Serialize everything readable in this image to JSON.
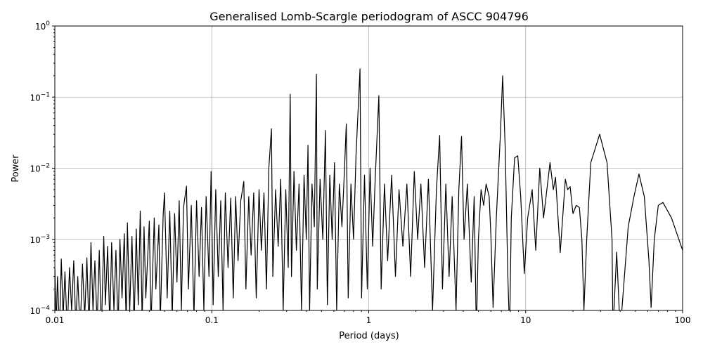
{
  "chart_data": {
    "type": "line",
    "title": "Generalised Lomb-Scargle periodogram of ASCC 904796",
    "xlabel": "Period (days)",
    "ylabel": "Power",
    "xscale": "log",
    "yscale": "log",
    "xlim": [
      0.01,
      100
    ],
    "ylim": [
      0.0001,
      1
    ],
    "grid": true,
    "line_color": "#000000",
    "grid_color": "#b0b0b0",
    "x_ticks": [
      {
        "v": 0.01,
        "label": "0.01"
      },
      {
        "v": 0.1,
        "label": "0.1"
      },
      {
        "v": 1,
        "label": "1"
      },
      {
        "v": 10,
        "label": "10"
      },
      {
        "v": 100,
        "label": "100"
      }
    ],
    "y_ticks": [
      {
        "v": 0.0001,
        "base": "10",
        "exp": "−4"
      },
      {
        "v": 0.001,
        "base": "10",
        "exp": "−3"
      },
      {
        "v": 0.01,
        "base": "10",
        "exp": "−2"
      },
      {
        "v": 0.1,
        "base": "10",
        "exp": "−1"
      },
      {
        "v": 1,
        "base": "10",
        "exp": "0"
      }
    ],
    "series": [
      {
        "points": [
          [
            0.01,
            0.0004
          ],
          [
            0.0102,
            6e-05
          ],
          [
            0.0104,
            0.0003
          ],
          [
            0.0107,
            5e-05
          ],
          [
            0.011,
            0.00053
          ],
          [
            0.0113,
            8e-05
          ],
          [
            0.0116,
            0.00035
          ],
          [
            0.012,
            5e-05
          ],
          [
            0.0124,
            0.0004
          ],
          [
            0.0128,
            0.0001
          ],
          [
            0.0132,
            0.0005
          ],
          [
            0.0136,
            6e-05
          ],
          [
            0.014,
            0.0003
          ],
          [
            0.0145,
            5e-05
          ],
          [
            0.015,
            0.00045
          ],
          [
            0.0155,
            8e-05
          ],
          [
            0.016,
            0.00055
          ],
          [
            0.0165,
            5e-05
          ],
          [
            0.017,
            0.0009
          ],
          [
            0.0175,
            0.0001
          ],
          [
            0.018,
            0.0005
          ],
          [
            0.0186,
            6e-05
          ],
          [
            0.0192,
            0.0007
          ],
          [
            0.0198,
            5e-05
          ],
          [
            0.0205,
            0.0011
          ],
          [
            0.021,
            0.00012
          ],
          [
            0.0217,
            0.0008
          ],
          [
            0.0224,
            6e-05
          ],
          [
            0.023,
            0.0009
          ],
          [
            0.0238,
            0.0001
          ],
          [
            0.0245,
            0.0007
          ],
          [
            0.0253,
            5e-05
          ],
          [
            0.026,
            0.001
          ],
          [
            0.0268,
            0.00015
          ],
          [
            0.0277,
            0.0012
          ],
          [
            0.0285,
            6e-05
          ],
          [
            0.029,
            0.0017
          ],
          [
            0.03,
            0.0001
          ],
          [
            0.031,
            0.0011
          ],
          [
            0.032,
            6e-05
          ],
          [
            0.033,
            0.0014
          ],
          [
            0.034,
            0.00012
          ],
          [
            0.035,
            0.0025
          ],
          [
            0.036,
            7e-05
          ],
          [
            0.037,
            0.0015
          ],
          [
            0.038,
            0.00015
          ],
          [
            0.04,
            0.0018
          ],
          [
            0.041,
            6e-05
          ],
          [
            0.043,
            0.002
          ],
          [
            0.044,
            0.0002
          ],
          [
            0.046,
            0.0016
          ],
          [
            0.047,
            7e-05
          ],
          [
            0.049,
            0.0022
          ],
          [
            0.05,
            0.0045
          ],
          [
            0.052,
            0.00015
          ],
          [
            0.054,
            0.0025
          ],
          [
            0.056,
            8e-05
          ],
          [
            0.058,
            0.0023
          ],
          [
            0.06,
            0.00025
          ],
          [
            0.062,
            0.0035
          ],
          [
            0.064,
            0.0001
          ],
          [
            0.066,
            0.0028
          ],
          [
            0.069,
            0.0056
          ],
          [
            0.071,
            0.0002
          ],
          [
            0.074,
            0.003
          ],
          [
            0.077,
            8e-05
          ],
          [
            0.08,
            0.0035
          ],
          [
            0.083,
            0.0003
          ],
          [
            0.086,
            0.0028
          ],
          [
            0.089,
            0.0001
          ],
          [
            0.092,
            0.004
          ],
          [
            0.096,
            0.0003
          ],
          [
            0.099,
            0.009
          ],
          [
            0.102,
            0.00012
          ],
          [
            0.106,
            0.005
          ],
          [
            0.11,
            0.0003
          ],
          [
            0.114,
            0.0035
          ],
          [
            0.118,
            0.0001
          ],
          [
            0.122,
            0.0045
          ],
          [
            0.127,
            0.0004
          ],
          [
            0.132,
            0.0038
          ],
          [
            0.137,
            0.00015
          ],
          [
            0.142,
            0.004
          ],
          [
            0.147,
            0.0005
          ],
          [
            0.153,
            0.0035
          ],
          [
            0.16,
            0.0065
          ],
          [
            0.165,
            0.0002
          ],
          [
            0.172,
            0.004
          ],
          [
            0.178,
            0.0006
          ],
          [
            0.185,
            0.0045
          ],
          [
            0.192,
            0.00015
          ],
          [
            0.2,
            0.005
          ],
          [
            0.207,
            0.0007
          ],
          [
            0.215,
            0.0045
          ],
          [
            0.223,
            0.0002
          ],
          [
            0.231,
            0.01
          ],
          [
            0.24,
            0.036
          ],
          [
            0.245,
            0.0003
          ],
          [
            0.255,
            0.005
          ],
          [
            0.265,
            0.0008
          ],
          [
            0.275,
            0.007
          ],
          [
            0.285,
            0.0001
          ],
          [
            0.296,
            0.005
          ],
          [
            0.307,
            0.0004
          ],
          [
            0.316,
            0.11
          ],
          [
            0.322,
            0.0003
          ],
          [
            0.334,
            0.009
          ],
          [
            0.346,
            0.0007
          ],
          [
            0.36,
            0.006
          ],
          [
            0.373,
            0.0001
          ],
          [
            0.387,
            0.008
          ],
          [
            0.4,
            0.001
          ],
          [
            0.41,
            0.021
          ],
          [
            0.42,
            0.0001
          ],
          [
            0.435,
            0.006
          ],
          [
            0.45,
            0.0015
          ],
          [
            0.464,
            0.21
          ],
          [
            0.47,
            0.0002
          ],
          [
            0.49,
            0.007
          ],
          [
            0.51,
            0.001
          ],
          [
            0.53,
            0.034
          ],
          [
            0.545,
            0.00012
          ],
          [
            0.565,
            0.008
          ],
          [
            0.585,
            0.001
          ],
          [
            0.605,
            0.012
          ],
          [
            0.625,
            0.0001
          ],
          [
            0.65,
            0.006
          ],
          [
            0.675,
            0.0015
          ],
          [
            0.7,
            0.009
          ],
          [
            0.72,
            0.042
          ],
          [
            0.74,
            0.00015
          ],
          [
            0.77,
            0.006
          ],
          [
            0.8,
            0.001
          ],
          [
            0.83,
            0.015
          ],
          [
            0.88,
            0.25
          ],
          [
            0.9,
            0.00015
          ],
          [
            0.94,
            0.008
          ],
          [
            0.98,
            0.0002
          ],
          [
            1.02,
            0.01
          ],
          [
            1.06,
            0.0008
          ],
          [
            1.1,
            0.007
          ],
          [
            1.16,
            0.105
          ],
          [
            1.2,
            0.0002
          ],
          [
            1.26,
            0.006
          ],
          [
            1.32,
            0.0005
          ],
          [
            1.4,
            0.008
          ],
          [
            1.48,
            0.0003
          ],
          [
            1.56,
            0.005
          ],
          [
            1.65,
            0.0008
          ],
          [
            1.75,
            0.006
          ],
          [
            1.85,
            0.0003
          ],
          [
            1.95,
            0.009
          ],
          [
            2.05,
            0.001
          ],
          [
            2.15,
            0.006
          ],
          [
            2.27,
            0.0004
          ],
          [
            2.4,
            0.007
          ],
          [
            2.55,
            0.0001
          ],
          [
            2.7,
            0.005
          ],
          [
            2.83,
            0.029
          ],
          [
            2.95,
            0.0002
          ],
          [
            3.1,
            0.006
          ],
          [
            3.25,
            0.0003
          ],
          [
            3.4,
            0.004
          ],
          [
            3.6,
            0.0001
          ],
          [
            3.75,
            0.005
          ],
          [
            3.9,
            0.028
          ],
          [
            4.05,
            0.001
          ],
          [
            4.25,
            0.006
          ],
          [
            4.5,
            0.00025
          ],
          [
            4.7,
            0.004
          ],
          [
            4.85,
            5e-05
          ],
          [
            5.0,
            0.001
          ],
          [
            5.2,
            0.005
          ],
          [
            5.4,
            0.003
          ],
          [
            5.6,
            0.006
          ],
          [
            5.85,
            0.004
          ],
          [
            6.0,
            0.0012
          ],
          [
            6.2,
            0.00011
          ],
          [
            6.5,
            0.002
          ],
          [
            6.9,
            0.03
          ],
          [
            7.13,
            0.2
          ],
          [
            7.4,
            0.02
          ],
          [
            7.7,
            0.0003
          ],
          [
            7.9,
            5e-05
          ],
          [
            8.1,
            0.002
          ],
          [
            8.5,
            0.014
          ],
          [
            8.9,
            0.015
          ],
          [
            9.3,
            0.004
          ],
          [
            9.8,
            0.00033
          ],
          [
            10.3,
            0.002
          ],
          [
            11.0,
            0.005
          ],
          [
            11.6,
            0.0007
          ],
          [
            12.3,
            0.01
          ],
          [
            13.0,
            0.002
          ],
          [
            14.3,
            0.012
          ],
          [
            15.0,
            0.005
          ],
          [
            15.5,
            0.0075
          ],
          [
            16.6,
            0.00065
          ],
          [
            17.9,
            0.007
          ],
          [
            18.5,
            0.005
          ],
          [
            19.2,
            0.0055
          ],
          [
            20.0,
            0.0023
          ],
          [
            21.0,
            0.003
          ],
          [
            22.0,
            0.0028
          ],
          [
            22.8,
            0.001
          ],
          [
            23.5,
            0.0001
          ],
          [
            24.5,
            0.001
          ],
          [
            26.0,
            0.012
          ],
          [
            29.6,
            0.03
          ],
          [
            33.0,
            0.012
          ],
          [
            35.5,
            0.001
          ],
          [
            36.0,
            5e-05
          ],
          [
            38.0,
            0.00066
          ],
          [
            40.0,
            5e-05
          ],
          [
            45.0,
            0.0015
          ],
          [
            49.0,
            0.004
          ],
          [
            52.7,
            0.0083
          ],
          [
            57.0,
            0.004
          ],
          [
            61.0,
            0.0005
          ],
          [
            63.0,
            0.00011
          ],
          [
            66.0,
            0.001
          ],
          [
            70.0,
            0.003
          ],
          [
            75.0,
            0.0033
          ],
          [
            85.0,
            0.002
          ],
          [
            100.0,
            0.0007
          ]
        ]
      }
    ]
  }
}
